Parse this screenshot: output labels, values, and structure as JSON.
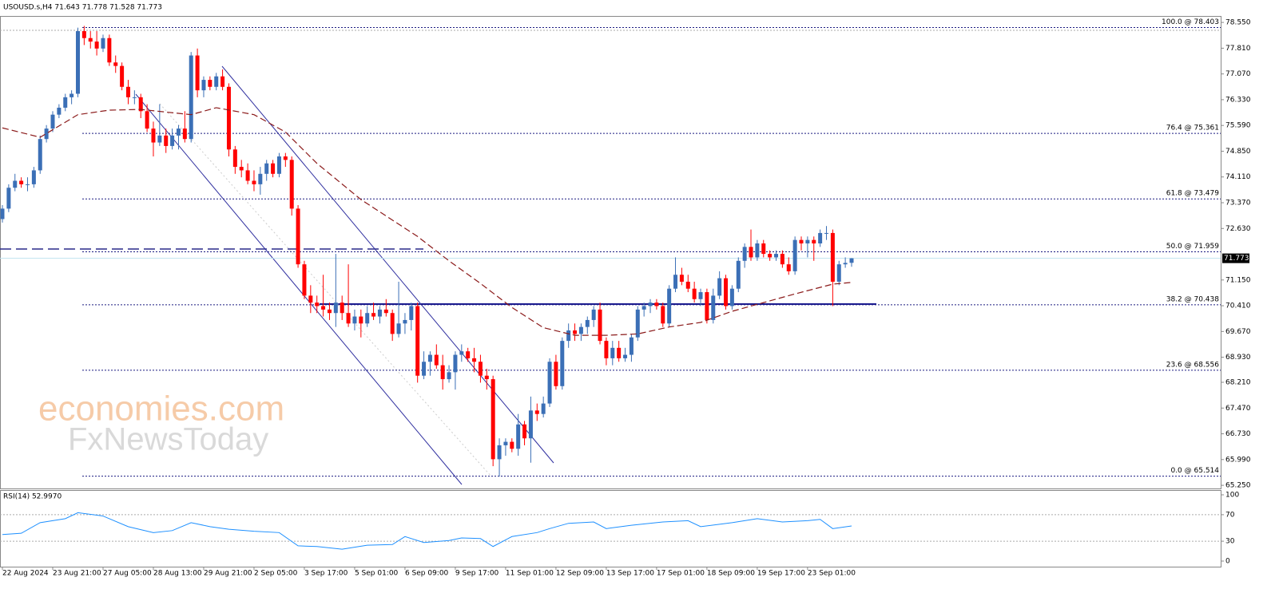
{
  "chart_data": {
    "type": "candlestick",
    "header": "USOUSD.s,H4  71.643 71.778 71.528 71.773",
    "price_tag": "71.773",
    "current_price": 71.773,
    "watermark": [
      "economies.com",
      "FxNewsToday"
    ],
    "bull_color": "#3b6fb6",
    "bear_color": "#ff0000",
    "ylim": [
      65.16,
      78.69
    ],
    "yticks": [
      {
        "value": 78.55,
        "label": "78.550"
      },
      {
        "value": 77.81,
        "label": "77.810"
      },
      {
        "value": 77.07,
        "label": "77.070"
      },
      {
        "value": 76.33,
        "label": "76.330"
      },
      {
        "value": 75.59,
        "label": "75.590"
      },
      {
        "value": 74.85,
        "label": "74.850"
      },
      {
        "value": 74.11,
        "label": "74.110"
      },
      {
        "value": 73.37,
        "label": "73.370"
      },
      {
        "value": 72.63,
        "label": "72.630"
      },
      {
        "value": 71.15,
        "label": "71.150"
      },
      {
        "value": 70.41,
        "label": "70.410"
      },
      {
        "value": 69.67,
        "label": "69.670"
      },
      {
        "value": 68.93,
        "label": "68.930"
      },
      {
        "value": 68.21,
        "label": "68.210"
      },
      {
        "value": 67.47,
        "label": "67.470"
      },
      {
        "value": 66.73,
        "label": "66.730"
      },
      {
        "value": 65.99,
        "label": "65.990"
      },
      {
        "value": 65.25,
        "label": "65.250"
      }
    ],
    "xlim": [
      0,
      135
    ],
    "xticks": [
      {
        "value": 0,
        "label": "22 Aug 2024"
      },
      {
        "value": 8,
        "label": "23 Aug 21:00"
      },
      {
        "value": 16,
        "label": "27 Aug 05:00"
      },
      {
        "value": 24,
        "label": "28 Aug 13:00"
      },
      {
        "value": 32,
        "label": "29 Aug 21:00"
      },
      {
        "value": 40,
        "label": "2 Sep 05:00"
      },
      {
        "value": 48,
        "label": "3 Sep 17:00"
      },
      {
        "value": 56,
        "label": "5 Sep 01:00"
      },
      {
        "value": 64,
        "label": "6 Sep 09:00"
      },
      {
        "value": 72,
        "label": "9 Sep 17:00"
      },
      {
        "value": 80,
        "label": "11 Sep 01:00"
      },
      {
        "value": 88,
        "label": "12 Sep 09:00"
      },
      {
        "value": 96,
        "label": "13 Sep 17:00"
      },
      {
        "value": 104,
        "label": "17 Sep 01:00"
      },
      {
        "value": 112,
        "label": "18 Sep 09:00"
      },
      {
        "value": 120,
        "label": "19 Sep 17:00"
      },
      {
        "value": 128,
        "label": "23 Sep 01:00"
      }
    ],
    "ohlc": [
      [
        72.9,
        73.3,
        72.8,
        73.2
      ],
      [
        73.2,
        73.9,
        73.1,
        73.8
      ],
      [
        73.8,
        74.2,
        73.7,
        74.0
      ],
      [
        74.0,
        74.1,
        73.8,
        73.9
      ],
      [
        73.9,
        74.1,
        73.7,
        73.9
      ],
      [
        73.9,
        74.4,
        73.8,
        74.3
      ],
      [
        74.3,
        75.3,
        74.2,
        75.2
      ],
      [
        75.2,
        75.6,
        75.1,
        75.5
      ],
      [
        75.5,
        76.0,
        75.4,
        75.9
      ],
      [
        75.9,
        76.2,
        75.8,
        76.1
      ],
      [
        76.1,
        76.5,
        76.0,
        76.4
      ],
      [
        76.4,
        76.6,
        76.2,
        76.5
      ],
      [
        76.5,
        78.4,
        76.4,
        78.3
      ],
      [
        78.3,
        78.45,
        77.9,
        78.1
      ],
      [
        78.1,
        78.3,
        77.8,
        78.0
      ],
      [
        78.0,
        78.3,
        77.6,
        77.8
      ],
      [
        77.8,
        78.2,
        77.7,
        78.1
      ],
      [
        78.1,
        78.2,
        77.3,
        77.4
      ],
      [
        77.4,
        77.6,
        77.1,
        77.3
      ],
      [
        77.3,
        77.4,
        76.6,
        76.7
      ],
      [
        76.7,
        76.9,
        76.2,
        76.4
      ],
      [
        76.4,
        76.6,
        76.2,
        76.4
      ],
      [
        76.4,
        76.5,
        75.8,
        76.0
      ],
      [
        76.0,
        76.2,
        75.4,
        75.5
      ],
      [
        75.5,
        75.7,
        74.7,
        75.1
      ],
      [
        75.1,
        76.2,
        75.0,
        75.3
      ],
      [
        75.3,
        75.5,
        74.8,
        75.0
      ],
      [
        75.0,
        75.5,
        74.9,
        75.3
      ],
      [
        75.3,
        75.6,
        74.9,
        75.5
      ],
      [
        75.5,
        76.0,
        75.1,
        75.2
      ],
      [
        75.2,
        77.7,
        75.1,
        77.6
      ],
      [
        77.6,
        77.8,
        76.4,
        76.6
      ],
      [
        76.6,
        77.0,
        76.4,
        76.9
      ],
      [
        76.9,
        77.0,
        76.6,
        76.7
      ],
      [
        76.7,
        77.1,
        76.6,
        77.0
      ],
      [
        77.0,
        77.2,
        76.6,
        76.7
      ],
      [
        76.7,
        76.8,
        74.7,
        74.9
      ],
      [
        74.9,
        75.0,
        74.2,
        74.4
      ],
      [
        74.4,
        74.6,
        74.1,
        74.3
      ],
      [
        74.3,
        74.5,
        73.9,
        74.0
      ],
      [
        74.0,
        74.3,
        73.7,
        73.9
      ],
      [
        73.9,
        74.4,
        73.6,
        74.2
      ],
      [
        74.2,
        74.6,
        74.0,
        74.5
      ],
      [
        74.5,
        74.6,
        74.1,
        74.2
      ],
      [
        74.2,
        74.8,
        74.1,
        74.7
      ],
      [
        74.7,
        74.8,
        74.4,
        74.6
      ],
      [
        74.6,
        74.7,
        73.0,
        73.2
      ],
      [
        73.2,
        73.3,
        71.5,
        71.6
      ],
      [
        71.6,
        71.7,
        70.6,
        70.7
      ],
      [
        70.7,
        71.0,
        70.2,
        70.5
      ],
      [
        70.5,
        70.7,
        70.2,
        70.4
      ],
      [
        70.4,
        71.3,
        70.1,
        70.3
      ],
      [
        70.3,
        70.5,
        70.0,
        70.2
      ],
      [
        70.2,
        71.9,
        69.8,
        70.5
      ],
      [
        70.5,
        70.7,
        70.0,
        70.2
      ],
      [
        70.2,
        71.6,
        69.8,
        69.9
      ],
      [
        69.9,
        70.3,
        69.7,
        70.1
      ],
      [
        70.1,
        70.3,
        69.5,
        69.9
      ],
      [
        69.9,
        70.4,
        69.8,
        70.2
      ],
      [
        70.2,
        70.5,
        70.0,
        70.1
      ],
      [
        70.1,
        70.4,
        69.9,
        70.3
      ],
      [
        70.3,
        70.6,
        70.1,
        70.2
      ],
      [
        70.2,
        70.3,
        69.4,
        69.6
      ],
      [
        69.6,
        71.1,
        69.5,
        69.9
      ],
      [
        69.9,
        70.2,
        69.6,
        70.0
      ],
      [
        70.0,
        70.5,
        69.7,
        70.4
      ],
      [
        70.4,
        70.5,
        68.2,
        68.4
      ],
      [
        68.4,
        69.1,
        68.3,
        68.8
      ],
      [
        68.8,
        69.1,
        68.4,
        69.0
      ],
      [
        69.0,
        69.3,
        68.6,
        68.7
      ],
      [
        68.7,
        69.0,
        68.0,
        68.3
      ],
      [
        68.3,
        68.7,
        68.2,
        68.5
      ],
      [
        68.5,
        69.1,
        68.0,
        69.0
      ],
      [
        69.0,
        69.3,
        68.8,
        69.1
      ],
      [
        69.1,
        69.2,
        68.8,
        68.9
      ],
      [
        68.9,
        69.2,
        68.5,
        68.8
      ],
      [
        68.8,
        69.0,
        68.2,
        68.4
      ],
      [
        68.4,
        68.6,
        68.0,
        68.3
      ],
      [
        68.3,
        68.4,
        65.8,
        66.0
      ],
      [
        66.0,
        66.6,
        65.5,
        66.4
      ],
      [
        66.4,
        66.6,
        66.1,
        66.5
      ],
      [
        66.5,
        66.6,
        66.2,
        66.3
      ],
      [
        66.3,
        67.3,
        66.1,
        67.0
      ],
      [
        67.0,
        67.1,
        66.4,
        66.6
      ],
      [
        66.6,
        67.8,
        65.9,
        67.4
      ],
      [
        67.4,
        67.6,
        67.1,
        67.3
      ],
      [
        67.3,
        67.8,
        67.2,
        67.6
      ],
      [
        67.6,
        68.9,
        67.5,
        68.8
      ],
      [
        68.8,
        69.0,
        68.0,
        68.1
      ],
      [
        68.1,
        69.5,
        68.0,
        69.4
      ],
      [
        69.4,
        69.9,
        69.2,
        69.7
      ],
      [
        69.7,
        69.9,
        69.4,
        69.6
      ],
      [
        69.6,
        69.9,
        69.4,
        69.8
      ],
      [
        69.8,
        70.1,
        69.6,
        70.0
      ],
      [
        70.0,
        70.4,
        69.8,
        70.3
      ],
      [
        70.3,
        70.5,
        69.3,
        69.4
      ],
      [
        69.4,
        69.5,
        68.7,
        68.9
      ],
      [
        68.9,
        69.4,
        68.7,
        69.2
      ],
      [
        69.2,
        69.4,
        68.8,
        68.9
      ],
      [
        68.9,
        69.2,
        68.8,
        69.0
      ],
      [
        69.0,
        69.6,
        68.8,
        69.5
      ],
      [
        69.5,
        70.4,
        69.4,
        70.3
      ],
      [
        70.3,
        70.5,
        70.1,
        70.4
      ],
      [
        70.4,
        70.6,
        70.2,
        70.5
      ],
      [
        70.5,
        70.6,
        70.3,
        70.4
      ],
      [
        70.4,
        70.5,
        69.8,
        69.9
      ],
      [
        69.9,
        71.0,
        69.8,
        70.9
      ],
      [
        70.9,
        71.8,
        70.8,
        71.3
      ],
      [
        71.3,
        71.5,
        71.0,
        71.1
      ],
      [
        71.1,
        71.3,
        70.8,
        70.9
      ],
      [
        70.9,
        71.1,
        70.5,
        70.6
      ],
      [
        70.6,
        70.9,
        70.4,
        70.8
      ],
      [
        70.8,
        70.9,
        69.9,
        70.0
      ],
      [
        70.0,
        70.9,
        69.9,
        70.7
      ],
      [
        70.7,
        71.4,
        70.6,
        71.2
      ],
      [
        71.2,
        71.3,
        70.3,
        70.4
      ],
      [
        70.4,
        71.0,
        70.3,
        70.9
      ],
      [
        70.9,
        71.8,
        70.8,
        71.7
      ],
      [
        71.7,
        72.2,
        71.5,
        72.1
      ],
      [
        72.1,
        72.6,
        71.7,
        71.8
      ],
      [
        71.8,
        72.3,
        71.7,
        72.2
      ],
      [
        72.2,
        72.3,
        71.8,
        71.9
      ],
      [
        71.9,
        72.0,
        71.7,
        71.8
      ],
      [
        71.8,
        72.0,
        71.7,
        71.9
      ],
      [
        71.9,
        72.0,
        71.5,
        71.6
      ],
      [
        71.6,
        71.8,
        71.3,
        71.4
      ],
      [
        71.4,
        72.4,
        71.3,
        72.3
      ],
      [
        72.3,
        72.4,
        72.0,
        72.2
      ],
      [
        72.2,
        72.4,
        71.8,
        72.3
      ],
      [
        72.3,
        72.4,
        71.7,
        72.2
      ],
      [
        72.2,
        72.6,
        72.1,
        72.5
      ],
      [
        72.5,
        72.7,
        72.3,
        72.5
      ],
      [
        72.5,
        72.6,
        70.4,
        71.1
      ],
      [
        71.1,
        71.7,
        71.0,
        71.6
      ],
      [
        71.6,
        71.8,
        71.5,
        71.64
      ],
      [
        71.643,
        71.778,
        71.528,
        71.773
      ]
    ],
    "ma": {
      "color": "#8b1a1a",
      "x": [
        0,
        6,
        12,
        17,
        22,
        30,
        34,
        40,
        45,
        50,
        57,
        66,
        71,
        76,
        81,
        86,
        91,
        96,
        101,
        106,
        111,
        116,
        121,
        126,
        132,
        135
      ],
      "values": [
        75.52,
        75.25,
        75.9,
        76.03,
        76.05,
        75.9,
        76.1,
        75.9,
        75.4,
        74.5,
        73.46,
        72.4,
        71.7,
        71.05,
        70.36,
        69.78,
        69.56,
        69.56,
        69.6,
        69.8,
        69.93,
        70.25,
        70.5,
        70.75,
        71.03,
        71.08
      ]
    },
    "fib_levels": [
      {
        "value": 78.403,
        "label": "100.0 @ 78.403"
      },
      {
        "value": 75.361,
        "label": "76.4 @ 75.361"
      },
      {
        "value": 73.479,
        "label": "61.8 @ 73.479"
      },
      {
        "value": 71.959,
        "label": "50.0 @ 71.959"
      },
      {
        "value": 70.438,
        "label": "38.2 @ 70.438"
      },
      {
        "value": 68.556,
        "label": "23.6 @ 68.556"
      },
      {
        "value": 65.514,
        "label": "0.0 @ 65.514"
      }
    ],
    "rsi": {
      "title": "RSI(14) 52.9970",
      "color": "#1e90ff",
      "ylim": [
        0,
        100
      ],
      "yticks": [
        100,
        70,
        30,
        0
      ],
      "levels": [
        70,
        30
      ],
      "x": [
        0,
        3,
        6,
        10,
        12,
        16,
        20,
        24,
        27,
        30,
        33,
        36,
        40,
        44,
        47,
        50,
        54,
        58,
        62,
        64,
        67,
        71,
        73,
        76,
        78,
        81,
        85,
        87,
        90,
        94,
        96,
        100,
        105,
        109,
        111,
        116,
        120,
        124,
        128,
        130,
        132,
        135
      ],
      "values": [
        40,
        42,
        58,
        64,
        73,
        68,
        52,
        43,
        46,
        58,
        52,
        48,
        45,
        43,
        23,
        22,
        18,
        24,
        25,
        37,
        28,
        31,
        35,
        34,
        22,
        37,
        43,
        49,
        57,
        59,
        49,
        54,
        59,
        61,
        52,
        58,
        64,
        59,
        61,
        63,
        49,
        53
      ]
    }
  }
}
